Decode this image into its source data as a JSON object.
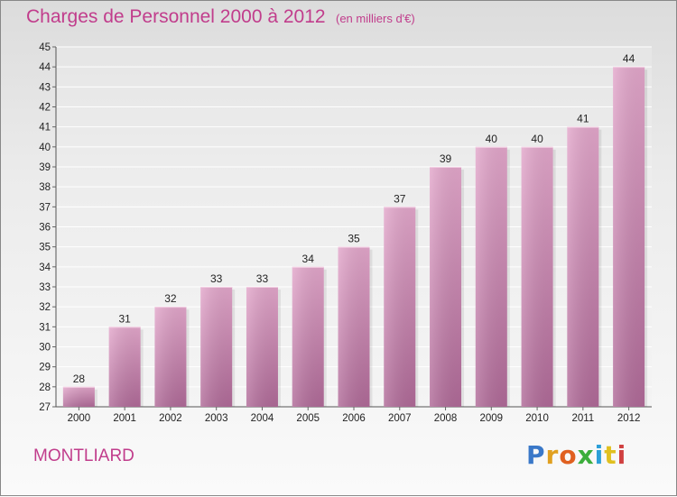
{
  "header": {
    "title": "Charges de Personnel 2000 à 2012",
    "subtitle": "(en milliers d'€)"
  },
  "footer": {
    "commune": "MONTLIARD",
    "brand_letters": [
      "P",
      "r",
      "o",
      "x",
      "i",
      "t",
      "i"
    ],
    "brand_colors": [
      "#3a78c8",
      "#e0a020",
      "#e06020",
      "#3cae3c",
      "#2ca0d8",
      "#e0c020",
      "#d04040"
    ]
  },
  "colors": {
    "bar": "#d58db8",
    "bar_dark": "#b76a98",
    "accent": "#c13d8c"
  },
  "chart_data": {
    "type": "bar",
    "title": "Charges de Personnel 2000 à 2012",
    "subtitle": "(en milliers d'€)",
    "categories": [
      "2000",
      "2001",
      "2002",
      "2003",
      "2004",
      "2005",
      "2006",
      "2007",
      "2008",
      "2009",
      "2010",
      "2011",
      "2012"
    ],
    "values": [
      28,
      31,
      32,
      33,
      33,
      34,
      35,
      37,
      39,
      40,
      40,
      41,
      44
    ],
    "ylim": [
      27,
      45
    ],
    "yticks": [
      27,
      28,
      29,
      30,
      31,
      32,
      33,
      34,
      35,
      36,
      37,
      38,
      39,
      40,
      41,
      42,
      43,
      44,
      45
    ],
    "grid": true,
    "xlabel": "",
    "ylabel": ""
  }
}
